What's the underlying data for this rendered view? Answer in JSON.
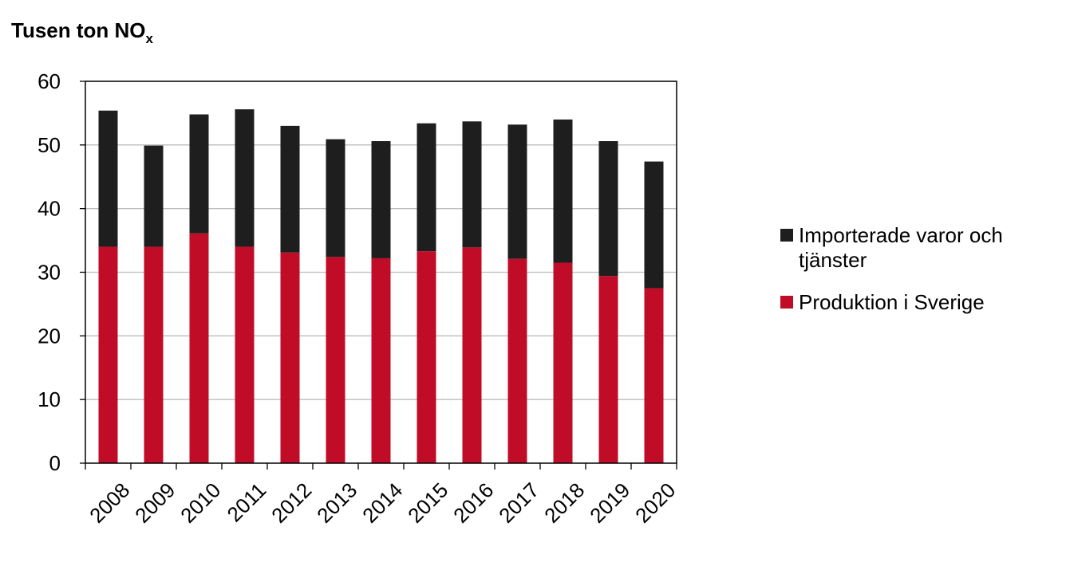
{
  "chart_data": {
    "type": "bar",
    "stacked": true,
    "title": "Tusen ton NO",
    "title_subscript": "x",
    "categories": [
      "2008",
      "2009",
      "2010",
      "2011",
      "2012",
      "2013",
      "2014",
      "2015",
      "2016",
      "2017",
      "2018",
      "2019",
      "2020"
    ],
    "series": [
      {
        "name": "Produktion i Sverige",
        "color": "#c00c27",
        "values": [
          34.0,
          34.0,
          36.1,
          34.0,
          33.1,
          32.4,
          32.2,
          33.3,
          33.9,
          32.1,
          31.5,
          29.4,
          27.5
        ]
      },
      {
        "name": "Importerade varor och tjänster",
        "color": "#1e1e1e",
        "values": [
          21.4,
          15.9,
          18.7,
          21.6,
          19.9,
          18.5,
          18.4,
          20.1,
          19.8,
          21.1,
          22.5,
          21.2,
          19.9
        ]
      }
    ],
    "ylim": [
      0,
      60
    ],
    "yticks": [
      "0",
      "10",
      "20",
      "30",
      "40",
      "50",
      "60"
    ],
    "grid": true,
    "legend_position": "right",
    "legend_order": [
      "Importerade varor och tjänster",
      "Produktion i Sverige"
    ],
    "legend_lines": {
      "imports": [
        "Importerade varor och",
        "tjänster"
      ],
      "production": [
        "Produktion i Sverige"
      ]
    }
  }
}
